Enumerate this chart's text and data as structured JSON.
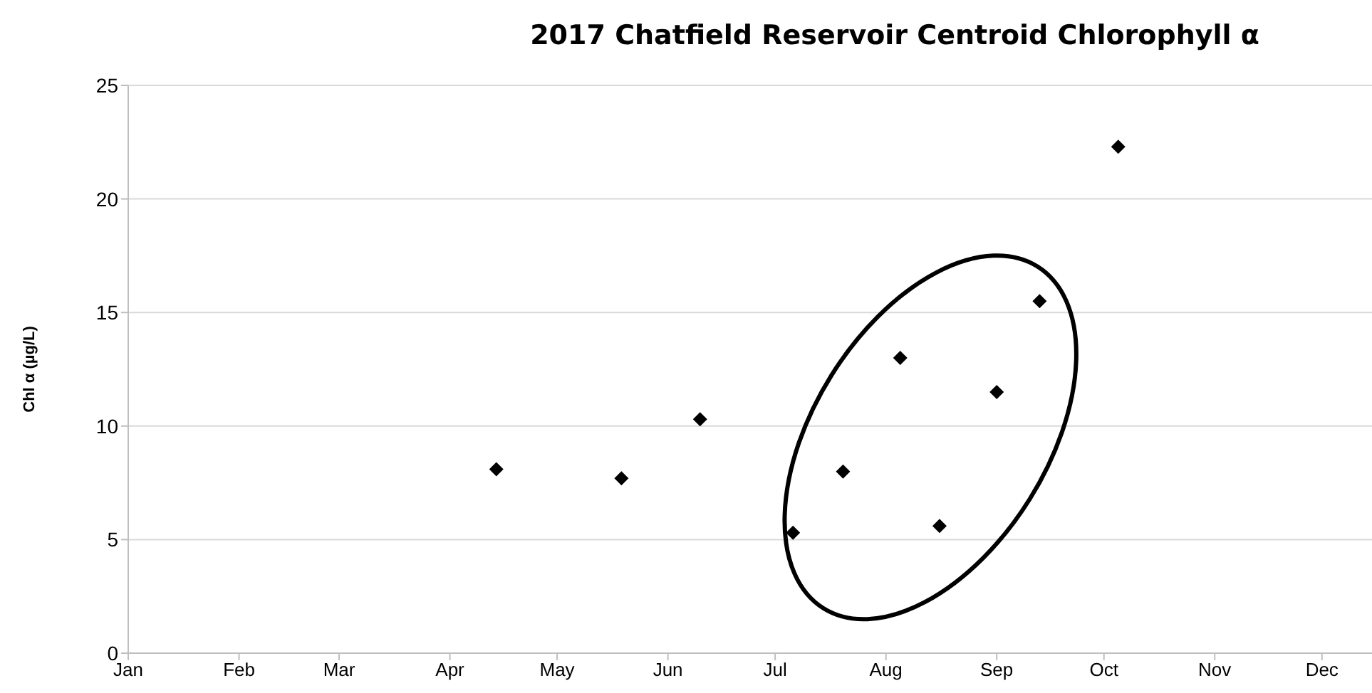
{
  "chart_data": {
    "type": "scatter",
    "title": "2017 Chatfield Reservoir Centroid Chlorophyll α",
    "ylabel": "Chl α (µg/L)",
    "x": [
      "2017-04-14",
      "2017-05-19",
      "2017-06-10",
      "2017-07-06",
      "2017-07-20",
      "2017-08-05",
      "2017-08-16",
      "2017-09-01",
      "2017-09-13",
      "2017-10-05"
    ],
    "series": [
      {
        "color": "#000000",
        "values": [
          8.1,
          7.7,
          10.3,
          5.3,
          8.0,
          13.0,
          5.6,
          11.5,
          15.5,
          22.3
        ]
      }
    ],
    "xlim": [
      "2017-01-01",
      "2017-12-15"
    ],
    "xticks": [
      {
        "value": "2017-01-01",
        "label": "Jan"
      },
      {
        "value": "2017-02-01",
        "label": "Feb"
      },
      {
        "value": "2017-03-01",
        "label": "Mar"
      },
      {
        "value": "2017-04-01",
        "label": "Apr"
      },
      {
        "value": "2017-05-01",
        "label": "May"
      },
      {
        "value": "2017-06-01",
        "label": "Jun"
      },
      {
        "value": "2017-07-01",
        "label": "Jul"
      },
      {
        "value": "2017-08-01",
        "label": "Aug"
      },
      {
        "value": "2017-09-01",
        "label": "Sep"
      },
      {
        "value": "2017-10-01",
        "label": "Oct"
      },
      {
        "value": "2017-11-01",
        "label": "Nov"
      },
      {
        "value": "2017-12-01",
        "label": "Dec"
      }
    ],
    "ylim": [
      0,
      25
    ],
    "yticks": [
      0,
      5,
      10,
      15,
      20,
      25
    ],
    "grid": "y",
    "legend": false,
    "marker": "diamond"
  }
}
